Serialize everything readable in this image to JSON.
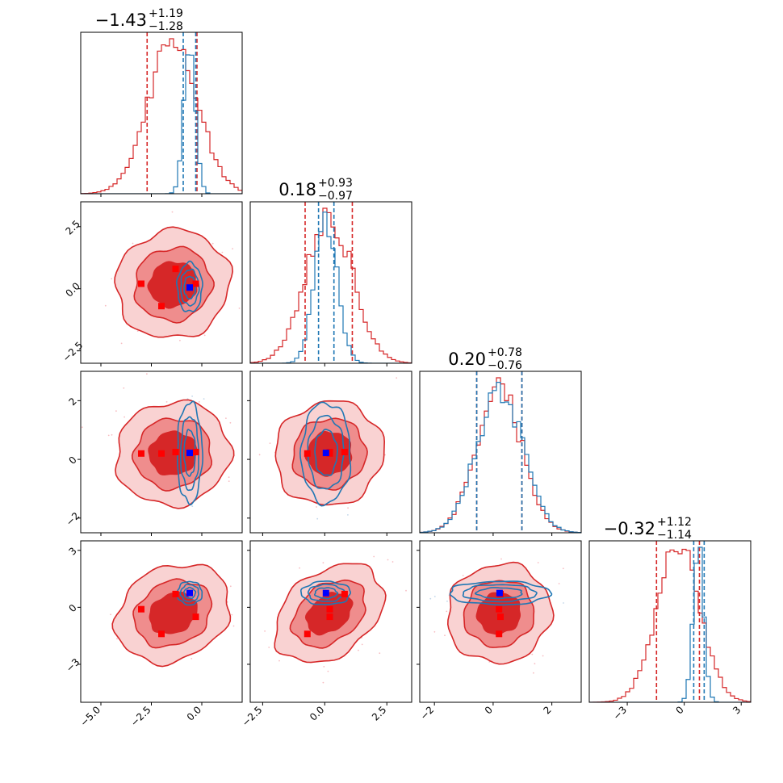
{
  "chart_data": {
    "type": "corner",
    "parameters": [
      {
        "title": {
          "value": "−1.43",
          "plus": "+1.19",
          "minus": "−1.28"
        },
        "range": [
          -6.0,
          2.0
        ],
        "ticks": [
          {
            "value": -5.0,
            "label": "−5.0"
          },
          {
            "value": -2.5,
            "label": "−2.5"
          },
          {
            "value": 0.0,
            "label": "0.0"
          }
        ]
      },
      {
        "title": {
          "value": "0.18",
          "plus": "+0.93",
          "minus": "−0.97"
        },
        "range": [
          -3.0,
          3.5
        ],
        "ticks": [
          {
            "value": -2.5,
            "label": "−2.5"
          },
          {
            "value": 0.0,
            "label": "0.0"
          },
          {
            "value": 2.5,
            "label": "2.5"
          }
        ]
      },
      {
        "title": {
          "value": "0.20",
          "plus": "+0.78",
          "minus": "−0.76"
        },
        "range": [
          -2.5,
          3.0
        ],
        "ticks": [
          {
            "value": -2,
            "label": "−2"
          },
          {
            "value": 0,
            "label": "0"
          },
          {
            "value": 2,
            "label": "2"
          }
        ]
      },
      {
        "title": {
          "value": "−0.32",
          "plus": "+1.12",
          "minus": "−1.14"
        },
        "range": [
          -5.0,
          3.5
        ],
        "ticks": [
          {
            "value": -3,
            "label": "−3"
          },
          {
            "value": 0,
            "label": "0"
          },
          {
            "value": 3,
            "label": "3"
          }
        ]
      }
    ],
    "series": [
      {
        "color": "#d62728",
        "fill_levels": [
          "#f9d2d2",
          "#ef8d8d",
          "#d62728"
        ],
        "mean": [
          -1.43,
          0.18,
          0.2,
          -0.32
        ],
        "sd": [
          1.23,
          0.95,
          0.77,
          1.13
        ],
        "quantiles": [
          [
            -2.71,
            -0.24
          ],
          [
            -0.79,
            1.11
          ],
          [
            -0.56,
            0.98
          ],
          [
            -1.46,
            0.8
          ]
        ],
        "correlations": {
          "2_1": 0.05,
          "3_1": 0.05,
          "3_2": 0.05,
          "4_1": 0.2,
          "4_2": 0.35,
          "4_3": 0.05
        }
      },
      {
        "color": "#1f77b4",
        "mean": [
          -0.6,
          0.05,
          0.22,
          0.75
        ],
        "sd": [
          0.28,
          0.45,
          0.78,
          0.28
        ],
        "quantiles": [
          [
            -0.92,
            -0.3
          ],
          [
            -0.25,
            0.37
          ],
          [
            -0.56,
            0.98
          ],
          [
            0.5,
            1.05
          ]
        ],
        "correlations": {}
      }
    ],
    "markers": {
      "red": [
        [
          -3.0,
          0.2,
          0.2,
          -0.1
        ],
        [
          -2.0,
          -0.7,
          0.2,
          -1.4
        ],
        [
          -1.3,
          0.8,
          0.25,
          0.7
        ],
        [
          -0.3,
          0.2,
          0.25,
          -0.5
        ]
      ],
      "blue": [
        -0.6,
        0.05,
        0.22,
        0.75
      ]
    }
  }
}
